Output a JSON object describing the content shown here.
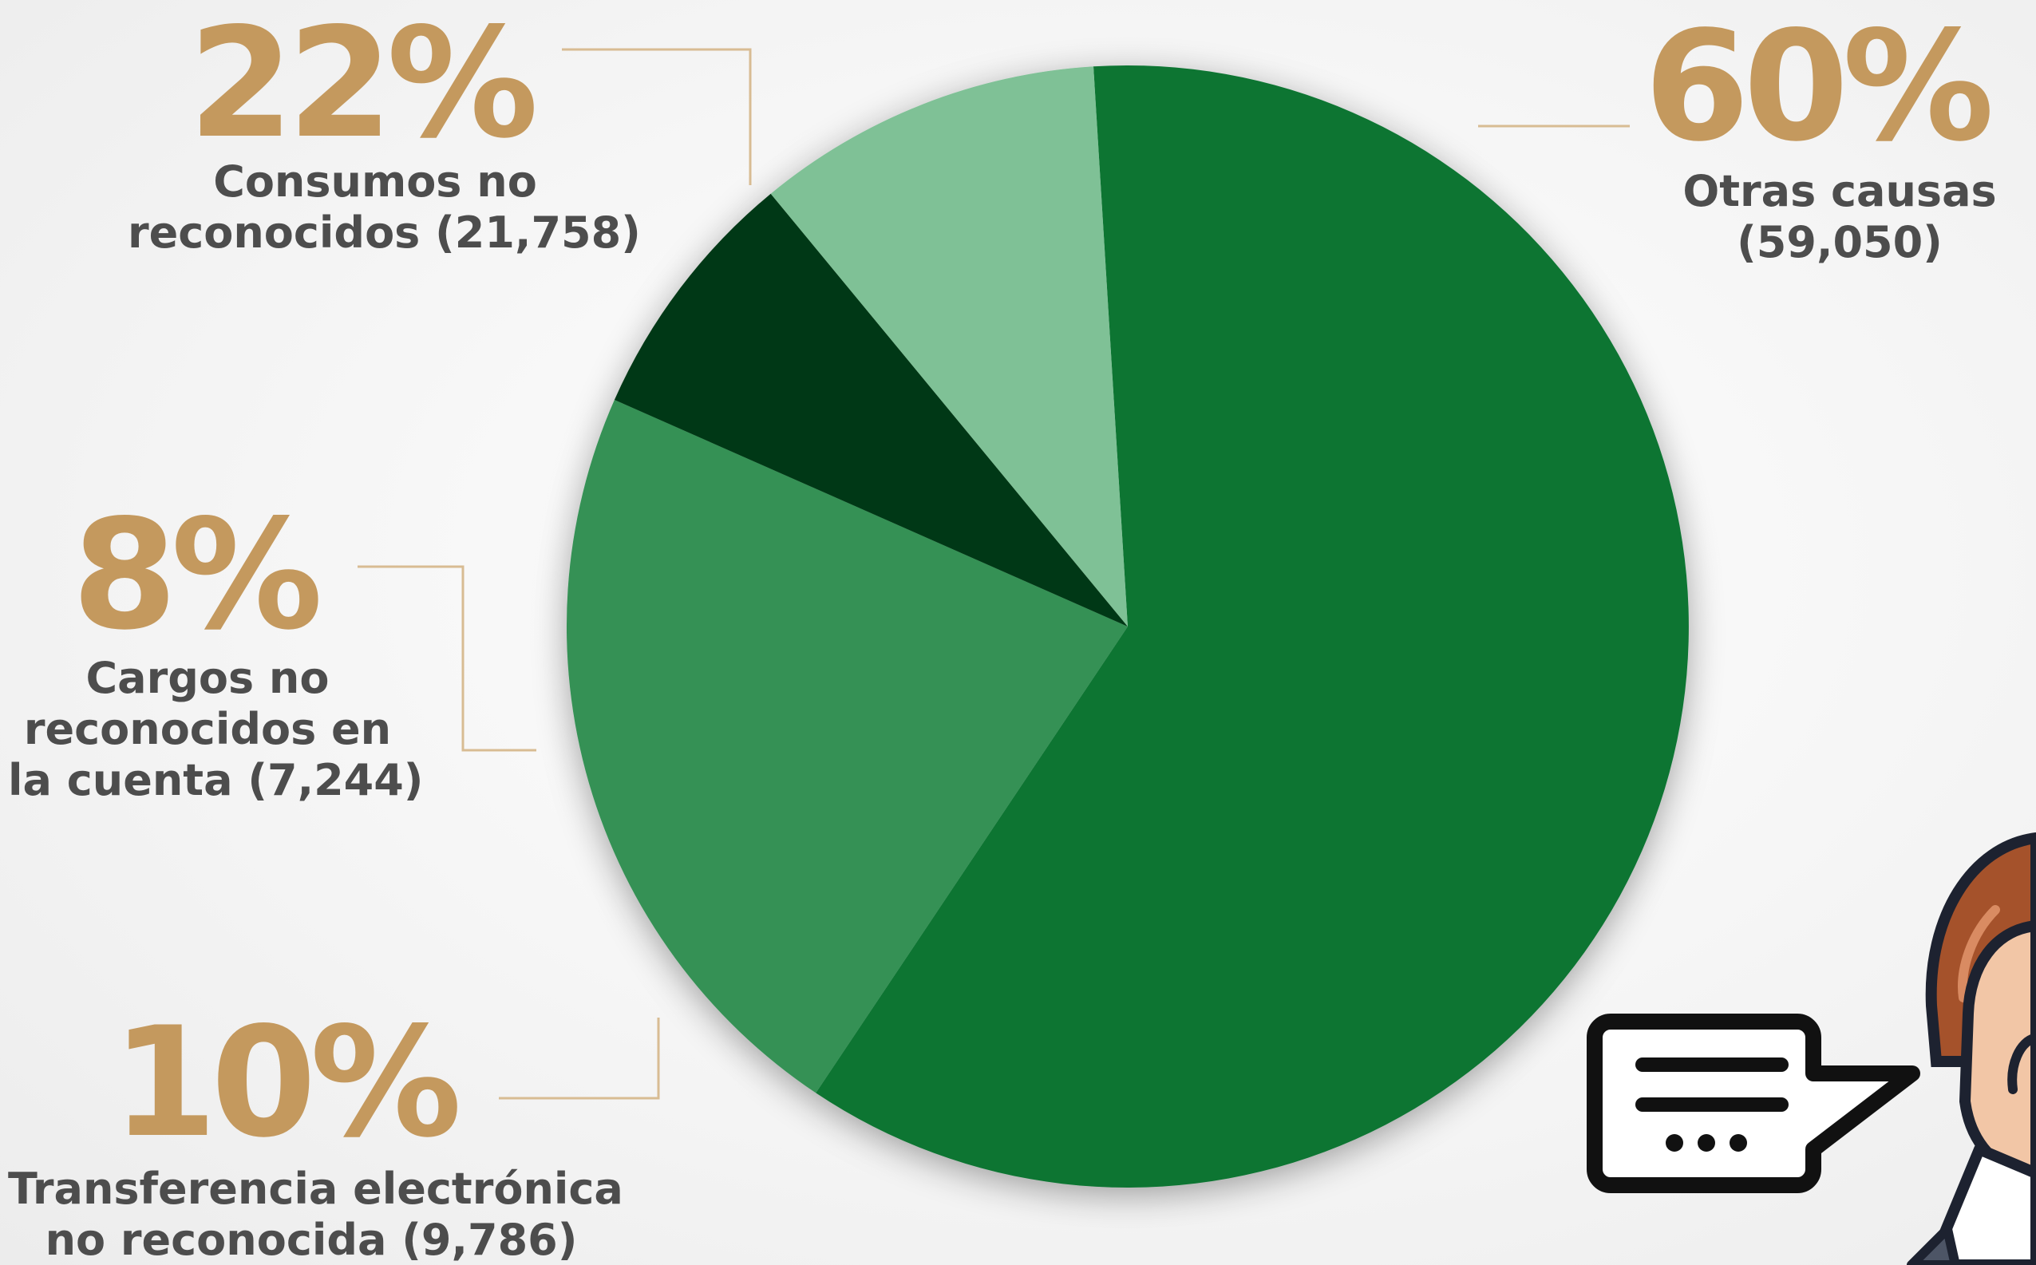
{
  "colors": {
    "accent": "#c4995e",
    "label_text": "#4d4d4d",
    "leader_line": "#d8bc93"
  },
  "chart_data": {
    "type": "pie",
    "title": "",
    "slices": [
      {
        "percent_label": "60%",
        "description_lines": [
          "Otras causas",
          "(59,050)"
        ],
        "value": 59050,
        "percent": 60,
        "color": "#0d7433"
      },
      {
        "percent_label": "22%",
        "description_lines": [
          "Consumos no",
          "reconocidos (21,758)"
        ],
        "value": 21758,
        "percent": 22,
        "color": "#359155"
      },
      {
        "percent_label": "8%",
        "description_lines": [
          "Cargos no",
          "reconocidos en",
          "la cuenta (7,244)"
        ],
        "value": 7244,
        "percent": 8,
        "color": "#003814"
      },
      {
        "percent_label": "10%",
        "description_lines": [
          "Transferencia electrónica",
          "no reconocida (9,786)"
        ],
        "value": 9786,
        "percent": 10,
        "color": "#7fc196"
      }
    ]
  },
  "decoration": {
    "speech_bubble_icon": "speech-bubble-icon",
    "person_icon": "person-illustration"
  }
}
